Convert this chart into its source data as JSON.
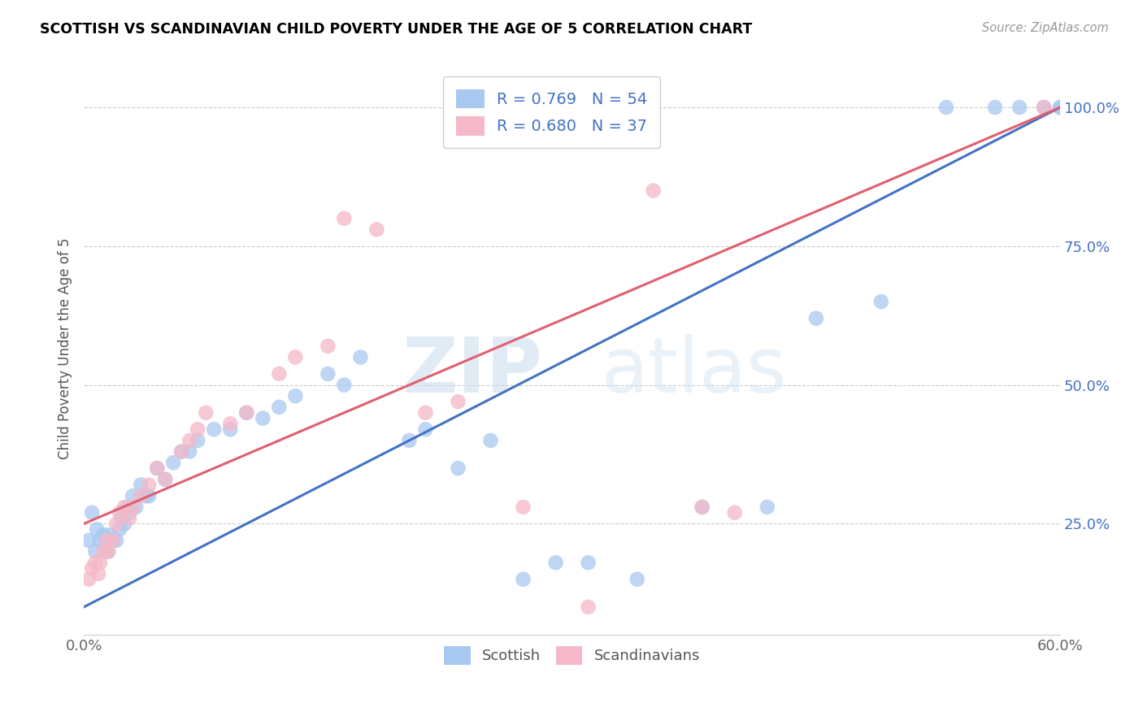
{
  "title": "SCOTTISH VS SCANDINAVIAN CHILD POVERTY UNDER THE AGE OF 5 CORRELATION CHART",
  "source": "Source: ZipAtlas.com",
  "ylabel": "Child Poverty Under the Age of 5",
  "ytick_labels": [
    "100.0%",
    "75.0%",
    "50.0%",
    "25.0%"
  ],
  "ytick_values": [
    1.0,
    0.75,
    0.5,
    0.25
  ],
  "xlim": [
    0.0,
    0.6
  ],
  "ylim": [
    0.05,
    1.08
  ],
  "legend_r_blue": "R = 0.769",
  "legend_n_blue": "N = 54",
  "legend_r_pink": "R = 0.680",
  "legend_n_pink": "N = 37",
  "legend_label_blue": "Scottish",
  "legend_label_pink": "Scandinavians",
  "blue_color": "#a8c8f0",
  "pink_color": "#f5b8c8",
  "blue_line_color": "#4472c4",
  "pink_line_color": "#e06070",
  "watermark_zip": "ZIP",
  "watermark_atlas": "atlas",
  "blue_trendline_x": [
    0.0,
    0.6
  ],
  "blue_trendline_y": [
    0.1,
    1.0
  ],
  "pink_trendline_x": [
    0.0,
    0.6
  ],
  "pink_trendline_y": [
    0.25,
    1.0
  ],
  "scatter_blue_x": [
    0.003,
    0.005,
    0.007,
    0.008,
    0.01,
    0.012,
    0.013,
    0.015,
    0.016,
    0.018,
    0.02,
    0.022,
    0.023,
    0.025,
    0.027,
    0.028,
    0.03,
    0.032,
    0.035,
    0.038,
    0.04,
    0.045,
    0.05,
    0.055,
    0.06,
    0.065,
    0.07,
    0.08,
    0.09,
    0.1,
    0.11,
    0.12,
    0.13,
    0.15,
    0.16,
    0.17,
    0.2,
    0.21,
    0.23,
    0.25,
    0.27,
    0.29,
    0.31,
    0.34,
    0.38,
    0.42,
    0.45,
    0.49,
    0.53,
    0.56,
    0.575,
    0.59,
    0.6,
    0.6
  ],
  "scatter_blue_y": [
    0.22,
    0.27,
    0.2,
    0.24,
    0.22,
    0.23,
    0.21,
    0.2,
    0.23,
    0.22,
    0.22,
    0.24,
    0.26,
    0.25,
    0.28,
    0.27,
    0.3,
    0.28,
    0.32,
    0.3,
    0.3,
    0.35,
    0.33,
    0.36,
    0.38,
    0.38,
    0.4,
    0.42,
    0.42,
    0.45,
    0.44,
    0.46,
    0.48,
    0.52,
    0.5,
    0.55,
    0.4,
    0.42,
    0.35,
    0.4,
    0.15,
    0.18,
    0.18,
    0.15,
    0.28,
    0.28,
    0.62,
    0.65,
    1.0,
    1.0,
    1.0,
    1.0,
    1.0,
    1.0
  ],
  "scatter_pink_x": [
    0.003,
    0.005,
    0.007,
    0.009,
    0.01,
    0.012,
    0.014,
    0.015,
    0.018,
    0.02,
    0.022,
    0.025,
    0.028,
    0.03,
    0.035,
    0.04,
    0.045,
    0.05,
    0.06,
    0.065,
    0.07,
    0.075,
    0.09,
    0.1,
    0.12,
    0.13,
    0.15,
    0.16,
    0.18,
    0.21,
    0.23,
    0.27,
    0.31,
    0.35,
    0.38,
    0.4,
    0.59
  ],
  "scatter_pink_y": [
    0.15,
    0.17,
    0.18,
    0.16,
    0.18,
    0.2,
    0.22,
    0.2,
    0.22,
    0.25,
    0.27,
    0.28,
    0.26,
    0.28,
    0.3,
    0.32,
    0.35,
    0.33,
    0.38,
    0.4,
    0.42,
    0.45,
    0.43,
    0.45,
    0.52,
    0.55,
    0.57,
    0.8,
    0.78,
    0.45,
    0.47,
    0.28,
    0.1,
    0.85,
    0.28,
    0.27,
    1.0
  ]
}
